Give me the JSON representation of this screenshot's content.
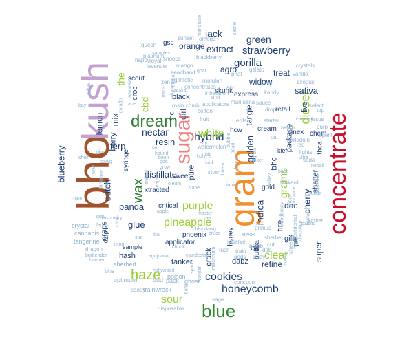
{
  "words": [
    {
      "text": "bho",
      "color": "#a0522d"
    },
    {
      "text": "kush",
      "color": "#c3a1d0"
    },
    {
      "text": "gram",
      "color": "#f28e2b"
    },
    {
      "text": "concentrate",
      "color": "#c8102e"
    },
    {
      "text": "sugar",
      "color": "#f08080"
    },
    {
      "text": "dream",
      "color": "#2e7d32"
    },
    {
      "text": "blue",
      "color": "#2e8b2e"
    },
    {
      "text": "haze",
      "color": "#9acd32"
    },
    {
      "text": "wax",
      "color": "#2e7d32"
    },
    {
      "text": "cookies",
      "color": "#1f3f73"
    },
    {
      "text": "honeycomb",
      "color": "#1f3f73"
    },
    {
      "text": "hybrid",
      "color": "#1f3f73"
    },
    {
      "text": "pineapple",
      "color": "#9acd32"
    },
    {
      "text": "white",
      "color": "#9acd32"
    },
    {
      "text": "purple",
      "color": "#9acd32"
    },
    {
      "text": "sour",
      "color": "#9acd32"
    },
    {
      "text": "gorilla",
      "color": "#1f3f73"
    },
    {
      "text": "strawberry",
      "color": "#1f3f73"
    },
    {
      "text": "green",
      "color": "#1f3f73"
    },
    {
      "text": "jack",
      "color": "#1f3f73"
    },
    {
      "text": "extract",
      "color": "#1f3f73"
    },
    {
      "text": "diesel",
      "color": "#9acd32"
    },
    {
      "text": "clear",
      "color": "#9acd32"
    },
    {
      "text": "grams",
      "color": "#9acd32"
    },
    {
      "text": "indica",
      "color": "#1f3f73"
    },
    {
      "text": "sativa",
      "color": "#1f3f73"
    },
    {
      "text": "golden",
      "color": "#1f3f73"
    },
    {
      "text": "blueberry",
      "color": "#1f3f73"
    },
    {
      "text": "lemon",
      "color": "#1f3f73"
    },
    {
      "text": "the",
      "color": "#9acd32"
    },
    {
      "text": "cbd",
      "color": "#9acd32"
    },
    {
      "text": "nectar",
      "color": "#1f3f73"
    },
    {
      "text": "resin",
      "color": "#1f3f73"
    },
    {
      "text": "terp",
      "color": "#1f3f73"
    },
    {
      "text": "glue",
      "color": "#1f3f73"
    },
    {
      "text": "panda",
      "color": "#1f3f73"
    },
    {
      "text": "distillate",
      "color": "#1f3f73"
    },
    {
      "text": "dutch",
      "color": "#1f3f73"
    },
    {
      "text": "berry",
      "color": "#1f3f73"
    },
    {
      "text": "mix",
      "color": "#1f3f73"
    },
    {
      "text": "girl",
      "color": "#1f3f73"
    },
    {
      "text": "orange",
      "color": "#1f3f73"
    },
    {
      "text": "agro",
      "color": "#1f3f73"
    },
    {
      "text": "treat",
      "color": "#1f3f73"
    },
    {
      "text": "widow",
      "color": "#1f3f73"
    },
    {
      "text": "cherry",
      "color": "#1f3f73"
    },
    {
      "text": "doc",
      "color": "#1f3f73"
    },
    {
      "text": "super",
      "color": "#1f3f73"
    },
    {
      "text": "fire",
      "color": "#1f3f73"
    },
    {
      "text": "bhc",
      "color": "#1f3f73"
    },
    {
      "text": "package",
      "color": "#1f3f73"
    },
    {
      "text": "live",
      "color": "#1f3f73"
    },
    {
      "text": "shatter",
      "color": "#1f3f73"
    },
    {
      "text": "tanker",
      "color": "#1f3f73"
    },
    {
      "text": "refine",
      "color": "#1f3f73"
    },
    {
      "text": "oil",
      "color": "#1f3f73"
    },
    {
      "text": "gift",
      "color": "#1f3f73"
    },
    {
      "text": "crack",
      "color": "#1f3f73"
    },
    {
      "text": "dabz",
      "color": "#1f3f73"
    },
    {
      "text": "pure",
      "color": "#1f3f73"
    },
    {
      "text": "tangie",
      "color": "#1f3f73"
    },
    {
      "text": "cream",
      "color": "#1f3f73"
    },
    {
      "text": "sweet",
      "color": "#1f3f73"
    },
    {
      "text": "xtracted",
      "color": "#1f3f73"
    },
    {
      "text": "thca",
      "color": "#1f3f73"
    },
    {
      "text": "pie",
      "color": "#1f3f73"
    },
    {
      "text": "hash",
      "color": "#1f3f73"
    },
    {
      "text": "grape",
      "color": "#1f3f73"
    },
    {
      "text": "phoenix",
      "color": "#1f3f73"
    },
    {
      "text": "applicator",
      "color": "#1f3f73"
    },
    {
      "text": "critical",
      "color": "#1f3f73"
    },
    {
      "text": "croc",
      "color": "#1f3f73"
    },
    {
      "text": "thc",
      "color": "#1f3f73"
    },
    {
      "text": "black",
      "color": "#1f3f73"
    },
    {
      "text": "express",
      "color": "#1f3f73"
    },
    {
      "text": "scout",
      "color": "#1f3f73"
    },
    {
      "text": "hcw",
      "color": "#1f3f73"
    },
    {
      "text": "syringe",
      "color": "#1f3f73"
    },
    {
      "text": "retail",
      "color": "#1f3f73"
    },
    {
      "text": "skunk",
      "color": "#1f3f73"
    },
    {
      "text": "gsc",
      "color": "#1f3f73"
    },
    {
      "text": "drop",
      "color": "#1f3f73"
    },
    {
      "text": "kief",
      "color": "#1f3f73"
    },
    {
      "text": "cinex",
      "color": "#1f3f73"
    },
    {
      "text": "bubba",
      "color": "#1f3f73"
    },
    {
      "text": "honey",
      "color": "#1f3f73"
    },
    {
      "text": "gold",
      "color": "#1f3f73"
    },
    {
      "text": "sample",
      "color": "#1f3f73"
    },
    {
      "text": "chem",
      "color": "#1f3f73"
    },
    {
      "text": "optimum",
      "color": "#8fb3cf"
    },
    {
      "text": "trainwreck",
      "color": "#8fb3cf"
    },
    {
      "text": "poison",
      "color": "#8fb3cf"
    },
    {
      "text": "bhs",
      "color": "#8fb3cf"
    },
    {
      "text": "sherbert",
      "color": "#8fb3cf"
    },
    {
      "text": "cannabis",
      "color": "#8fb3cf"
    },
    {
      "text": "crystal",
      "color": "#8fb3cf"
    },
    {
      "text": "tangerine",
      "color": "#8fb3cf"
    },
    {
      "text": "dragon",
      "color": "#8fb3cf"
    },
    {
      "text": "bud",
      "color": "#8fb3cf"
    },
    {
      "text": "pack",
      "color": "#8fb3cf"
    },
    {
      "text": "ghost",
      "color": "#8fb3cf"
    },
    {
      "text": "candy",
      "color": "#8fb3cf"
    },
    {
      "text": "disposable",
      "color": "#8fb3cf"
    },
    {
      "text": "sage",
      "color": "#8fb3cf"
    },
    {
      "text": "conc",
      "color": "#8fb3cf"
    },
    {
      "text": "con",
      "color": "#8fb3cf"
    },
    {
      "text": "concentrates",
      "color": "#8fb3cf"
    },
    {
      "text": "headband",
      "color": "#8fb3cf"
    },
    {
      "text": "lavender",
      "color": "#8fb3cf"
    },
    {
      "text": "queen",
      "color": "#8fb3cf"
    },
    {
      "text": "happy",
      "color": "#8fb3cf"
    },
    {
      "text": "samples",
      "color": "#8fb3cf"
    },
    {
      "text": "royal",
      "color": "#8fb3cf"
    },
    {
      "text": "platinum",
      "color": "#8fb3cf"
    },
    {
      "text": "snoops",
      "color": "#8fb3cf"
    },
    {
      "text": "sunset",
      "color": "#8fb3cf"
    },
    {
      "text": "omega",
      "color": "#8fb3cf"
    },
    {
      "text": "mango",
      "color": "#8fb3cf"
    },
    {
      "text": "blackberry",
      "color": "#8fb3cf"
    },
    {
      "text": "galactic",
      "color": "#8fb3cf"
    },
    {
      "text": "romulan",
      "color": "#8fb3cf"
    },
    {
      "text": "phat",
      "color": "#8fb3cf"
    },
    {
      "text": "gelato",
      "color": "#8fb3cf"
    },
    {
      "text": "crystals",
      "color": "#8fb3cf"
    },
    {
      "text": "vanilla",
      "color": "#8fb3cf"
    },
    {
      "text": "exodus",
      "color": "#8fb3cf"
    },
    {
      "text": "kandy",
      "color": "#8fb3cf"
    },
    {
      "text": "select",
      "color": "#8fb3cf"
    },
    {
      "text": "jesus",
      "color": "#8fb3cf"
    },
    {
      "text": "purp",
      "color": "#8fb3cf"
    },
    {
      "text": "agent",
      "color": "#8fb3cf"
    },
    {
      "text": "top",
      "color": "#8fb3cf"
    },
    {
      "text": "starter",
      "color": "#8fb3cf"
    },
    {
      "text": "reach",
      "color": "#8fb3cf"
    },
    {
      "text": "cat",
      "color": "#8fb3cf"
    },
    {
      "text": "harlequin",
      "color": "#8fb3cf"
    },
    {
      "text": "bunny",
      "color": "#8fb3cf"
    },
    {
      "text": "sauce",
      "color": "#8fb3cf"
    },
    {
      "text": "marijuana",
      "color": "#8fb3cf"
    },
    {
      "text": "drops",
      "color": "#8fb3cf"
    },
    {
      "text": "inhalation",
      "color": "#8fb3cf"
    },
    {
      "text": "and",
      "color": "#8fb3cf"
    },
    {
      "text": "unit",
      "color": "#8fb3cf"
    },
    {
      "text": "applicators",
      "color": "#8fb3cf"
    },
    {
      "text": "cotton",
      "color": "#8fb3cf"
    },
    {
      "text": "comb",
      "color": "#8fb3cf"
    },
    {
      "text": "fruit",
      "color": "#8fb3cf"
    },
    {
      "text": "watermelon",
      "color": "#8fb3cf"
    },
    {
      "text": "errls",
      "color": "#8fb3cf"
    },
    {
      "text": "rosin",
      "color": "#8fb3cf"
    },
    {
      "text": "zen",
      "color": "#8fb3cf"
    },
    {
      "text": "bubble",
      "color": "#8fb3cf"
    },
    {
      "text": "pearl",
      "color": "#8fb3cf"
    },
    {
      "text": "banana",
      "color": "#8fb3cf"
    },
    {
      "text": "walker",
      "color": "#8fb3cf"
    },
    {
      "text": "afghan",
      "color": "#8fb3cf"
    },
    {
      "text": "lights",
      "color": "#8fb3cf"
    },
    {
      "text": "red",
      "color": "#8fb3cf"
    },
    {
      "text": "soda",
      "color": "#8fb3cf"
    },
    {
      "text": "essential",
      "color": "#8fb3cf"
    },
    {
      "text": "tankard",
      "color": "#8fb3cf"
    },
    {
      "text": "valley",
      "color": "#8fb3cf"
    },
    {
      "text": "amber",
      "color": "#8fb3cf"
    },
    {
      "text": "lemonade",
      "color": "#8fb3cf"
    },
    {
      "text": "chocolate",
      "color": "#8fb3cf"
    },
    {
      "text": "cactus",
      "color": "#8fb3cf"
    },
    {
      "text": "kosher",
      "color": "#8fb3cf"
    },
    {
      "text": "weedbunny",
      "color": "#8fb3cf"
    },
    {
      "text": "cookie",
      "color": "#8fb3cf"
    },
    {
      "text": "cheese",
      "color": "#8fb3cf"
    },
    {
      "text": "high",
      "color": "#8fb3cf"
    },
    {
      "text": "sherbet",
      "color": "#8fb3cf"
    },
    {
      "text": "bomb",
      "color": "#8fb3cf"
    },
    {
      "text": "cut",
      "color": "#8fb3cf"
    },
    {
      "text": "ewok",
      "color": "#8fb3cf"
    },
    {
      "text": "primus",
      "color": "#8fb3cf"
    },
    {
      "text": "reserve",
      "color": "#8fb3cf"
    },
    {
      "text": "train",
      "color": "#8fb3cf"
    },
    {
      "text": "rush",
      "color": "#8fb3cf"
    },
    {
      "text": "gods",
      "color": "#8fb3cf"
    },
    {
      "text": "dab",
      "color": "#8fb3cf"
    },
    {
      "text": "putty",
      "color": "#8fb3cf"
    },
    {
      "text": "millennium",
      "color": "#8fb3cf"
    },
    {
      "text": "wonder",
      "color": "#8fb3cf"
    },
    {
      "text": "batter",
      "color": "#8fb3cf"
    },
    {
      "text": "clandestine",
      "color": "#8fb3cf"
    },
    {
      "text": "hollywood",
      "color": "#8fb3cf"
    },
    {
      "text": "space",
      "color": "#8fb3cf"
    },
    {
      "text": "chunk",
      "color": "#8fb3cf"
    },
    {
      "text": "bruce",
      "color": "#8fb3cf"
    },
    {
      "text": "agrijuana",
      "color": "#8fb3cf"
    },
    {
      "text": "banner",
      "color": "#8fb3cf"
    },
    {
      "text": "budtender",
      "color": "#8fb3cf"
    },
    {
      "text": "icing",
      "color": "#8fb3cf"
    },
    {
      "text": "rhino",
      "color": "#8fb3cf"
    },
    {
      "text": "raspberry",
      "color": "#8fb3cf"
    },
    {
      "text": "gdp",
      "color": "#8fb3cf"
    },
    {
      "text": "farms",
      "color": "#8fb3cf"
    },
    {
      "text": "citrus",
      "color": "#8fb3cf"
    },
    {
      "text": "star",
      "color": "#8fb3cf"
    },
    {
      "text": "thai",
      "color": "#8fb3cf"
    },
    {
      "text": "apple",
      "color": "#8fb3cf"
    },
    {
      "text": "chemdawg",
      "color": "#8fb3cf"
    },
    {
      "text": "master",
      "color": "#8fb3cf"
    },
    {
      "text": "raw",
      "color": "#8fb3cf"
    },
    {
      "text": "push",
      "color": "#8fb3cf"
    },
    {
      "text": "vape",
      "color": "#8fb3cf"
    },
    {
      "text": "oleum",
      "color": "#8fb3cf"
    },
    {
      "text": "ionic",
      "color": "#8fb3cf"
    },
    {
      "text": "silver",
      "color": "#8fb3cf"
    },
    {
      "text": "hitem",
      "color": "#8fb3cf"
    },
    {
      "text": "dank",
      "color": "#8fb3cf"
    },
    {
      "text": "big",
      "color": "#8fb3cf"
    },
    {
      "text": "holy",
      "color": "#8fb3cf"
    },
    {
      "text": "spr",
      "color": "#8fb3cf"
    },
    {
      "text": "god",
      "color": "#8fb3cf"
    },
    {
      "text": "grow",
      "color": "#8fb3cf"
    },
    {
      "text": "animal",
      "color": "#8fb3cf"
    },
    {
      "text": "magoo",
      "color": "#8fb3cf"
    },
    {
      "text": "hound",
      "color": "#8fb3cf"
    },
    {
      "text": "fat",
      "color": "#8fb3cf"
    },
    {
      "text": "bean",
      "color": "#8fb3cf"
    },
    {
      "text": "dawg",
      "color": "#8fb3cf"
    },
    {
      "text": "pho",
      "color": "#8fb3cf"
    },
    {
      "text": "shelf",
      "color": "#8fb3cf"
    },
    {
      "text": "herer",
      "color": "#8fb3cf"
    },
    {
      "text": "tahoe",
      "color": "#8fb3cf"
    },
    {
      "text": "sap",
      "color": "#8fb3cf"
    },
    {
      "text": "snow",
      "color": "#8fb3cf"
    },
    {
      "text": "bay",
      "color": "#8fb3cf"
    },
    {
      "text": "avitas",
      "color": "#8fb3cf"
    },
    {
      "text": "ape",
      "color": "#8fb3cf"
    },
    {
      "text": "amnesia",
      "color": "#8fb3cf"
    },
    {
      "text": "dorado",
      "color": "#8fb3cf"
    },
    {
      "text": "nwos",
      "color": "#8fb3cf"
    },
    {
      "text": "afgooey",
      "color": "#8fb3cf"
    },
    {
      "text": "durban",
      "color": "#8fb3cf"
    },
    {
      "text": "haaskal",
      "color": "#8fb3cf"
    },
    {
      "text": "goat",
      "color": "#8fb3cf"
    },
    {
      "text": "secret",
      "color": "#8fb3cf"
    },
    {
      "text": "mandrace",
      "color": "#8fb3cf"
    },
    {
      "text": "tsunami",
      "color": "#8fb3cf"
    },
    {
      "text": "purkle",
      "color": "#8fb3cf"
    },
    {
      "text": "ultra",
      "color": "#8fb3cf"
    },
    {
      "text": "nepali",
      "color": "#8fb3cf"
    },
    {
      "text": "pacific",
      "color": "#8fb3cf"
    },
    {
      "text": "confidential",
      "color": "#8fb3cf"
    },
    {
      "text": "baba",
      "color": "#8fb3cf"
    }
  ]
}
